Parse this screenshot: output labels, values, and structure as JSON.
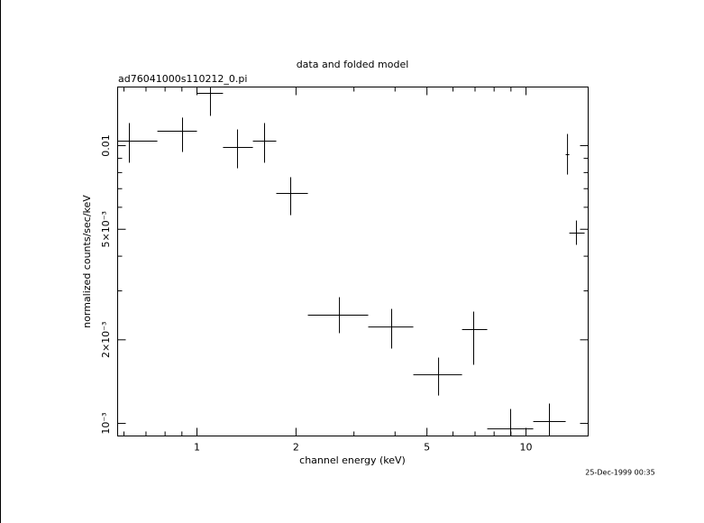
{
  "chart_data": {
    "type": "scatter",
    "title": "data and folded model",
    "subtitle": "ad76041000s110212_0.pi",
    "xlabel": "channel energy (keV)",
    "ylabel": "normalized counts/sec/keV",
    "annotation": "25-Dec-1999 00:35",
    "xlog": true,
    "ylog": true,
    "color": "#000000",
    "xlim": [
      0.574,
      15.45
    ],
    "ylim": [
      0.000901,
      0.01626
    ],
    "xticks": [
      1,
      2,
      5,
      10
    ],
    "yticks": [
      {
        "value": 0.001,
        "label": "10⁻³"
      },
      {
        "value": 0.002,
        "label": "2×10⁻³"
      },
      {
        "value": 0.005,
        "label": "5×10⁻³"
      },
      0.01
    ],
    "xminorticks": [
      0.6,
      0.7,
      0.8,
      0.9,
      3,
      4,
      6,
      7,
      8,
      9
    ],
    "yminorticks": [
      0.003,
      0.004,
      0.006,
      0.007,
      0.008,
      0.009
    ],
    "x": [
      0.623,
      0.904,
      1.099,
      1.328,
      1.605,
      1.927,
      2.71,
      3.906,
      5.424,
      6.935,
      8.98,
      11.78,
      13.37,
      14.23
    ],
    "x_low": [
      0.574,
      0.758,
      1.0,
      1.2,
      1.479,
      1.742,
      2.173,
      3.315,
      4.545,
      6.392,
      7.624,
      10.52,
      13.2,
      13.54
    ],
    "x_high": [
      0.758,
      1.0,
      1.2,
      1.479,
      1.742,
      2.173,
      3.315,
      4.545,
      6.392,
      7.624,
      10.52,
      13.2,
      13.54,
      15.07
    ],
    "y": [
      0.01038,
      0.01127,
      0.01543,
      0.00985,
      0.01038,
      0.00673,
      0.002453,
      0.002225,
      0.001497,
      0.002176,
      0.000956,
      0.001015,
      0.00928,
      0.004843
    ],
    "y_low": [
      0.00868,
      0.00949,
      0.0128,
      0.00829,
      0.00868,
      0.00562,
      0.002113,
      0.00186,
      0.00126,
      0.001626,
      0.000823,
      0.000874,
      0.00787,
      0.004394
    ],
    "y_high": [
      0.01206,
      0.01262,
      0.0174,
      0.01144,
      0.01206,
      0.0077,
      0.002847,
      0.002584,
      0.001726,
      0.002527,
      0.001127,
      0.001179,
      0.01102,
      0.005376
    ]
  }
}
